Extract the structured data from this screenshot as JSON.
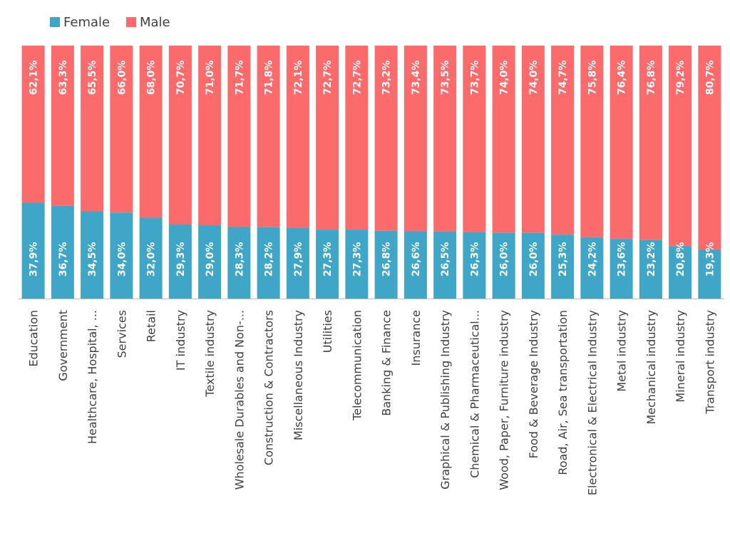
{
  "chart_data": {
    "type": "bar",
    "stacked": "100%",
    "orientation": "vertical",
    "categories": [
      "Education",
      "Government",
      "Healthcare, Hospital, ...",
      "Services",
      "Retail",
      "IT industry",
      "Textile industry",
      "Wholesale Durables and Non-...",
      "Construction & Contractors",
      "Miscellaneous Industry",
      "Utilities",
      "Telecommunication",
      "Banking &  Finance",
      "Insurance",
      "Graphical & Publishing Industry",
      "Chemical & Pharmaceutical...",
      "Wood, Paper, Furniture industry",
      "Food & Beverage Industry",
      "Road, Air, Sea transportation",
      "Electronical & Electrical Industry",
      "Metal industry",
      "Mechanical industry",
      "Mineral industry",
      "Transport industry"
    ],
    "series": [
      {
        "name": "Female",
        "color": "#3fa6c8",
        "values": [
          37.9,
          36.7,
          34.5,
          34.0,
          32.0,
          29.3,
          29.0,
          28.3,
          28.2,
          27.9,
          27.3,
          27.3,
          26.8,
          26.6,
          26.5,
          26.3,
          26.0,
          26.0,
          25.3,
          24.2,
          23.6,
          23.2,
          20.8,
          19.3
        ],
        "labels": [
          "37,9%",
          "36,7%",
          "34,5%",
          "34,0%",
          "32,0%",
          "29,3%",
          "29,0%",
          "28,3%",
          "28,2%",
          "27,9%",
          "27,3%",
          "27,3%",
          "26,8%",
          "26,6%",
          "26,5%",
          "26,3%",
          "26,0%",
          "26,0%",
          "25,3%",
          "24,2%",
          "23,6%",
          "23,2%",
          "20,8%",
          "19,3%"
        ]
      },
      {
        "name": "Male",
        "color": "#fb6b6b",
        "values": [
          62.1,
          63.3,
          65.5,
          66.0,
          68.0,
          70.7,
          71.0,
          71.7,
          71.8,
          72.1,
          72.7,
          72.7,
          73.2,
          73.4,
          73.5,
          73.7,
          74.0,
          74.0,
          74.7,
          75.8,
          76.4,
          76.8,
          79.2,
          80.7
        ],
        "labels": [
          "62,1%",
          "63,3%",
          "65,5%",
          "66,0%",
          "68,0%",
          "70,7%",
          "71,0%",
          "71,7%",
          "71,8%",
          "72,1%",
          "72,7%",
          "72,7%",
          "73,2%",
          "73,4%",
          "73,5%",
          "73,7%",
          "74,0%",
          "74,0%",
          "74,7%",
          "75,8%",
          "76,4%",
          "76,8%",
          "79,2%",
          "80,7%"
        ]
      }
    ],
    "ylim": [
      0,
      100
    ],
    "legend": {
      "position": "top-left",
      "entries": [
        "Female",
        "Male"
      ]
    },
    "grid": false,
    "title": "",
    "xlabel": "",
    "ylabel": ""
  }
}
